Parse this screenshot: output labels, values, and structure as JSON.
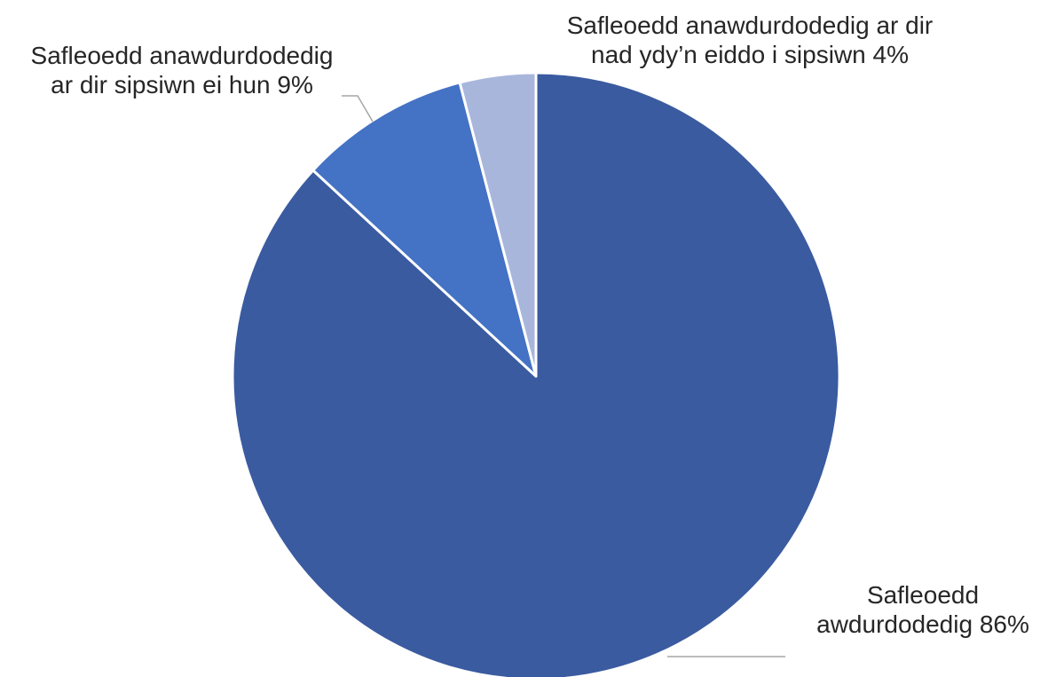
{
  "chart_data": {
    "type": "pie",
    "title": "",
    "legend": "none",
    "slices": [
      {
        "name": "Safleoedd awdurdodedig",
        "value": 86,
        "label_lines": [
          "Safleoedd",
          "awdurdodedig 86%"
        ],
        "color": "#3a5ba0"
      },
      {
        "name": "Safleoedd anawdurdodedig ar dir sipsiwn ei hun",
        "value": 9,
        "label_lines": [
          "Safleoedd anawdurdodedig",
          "ar dir sipsiwn ei hun 9%"
        ],
        "color": "#4472c4"
      },
      {
        "name": "Safleoedd anawdurdodedig ar dir nad ydy’n eiddo i sipsiwn",
        "value": 4,
        "label_lines": [
          "Safleoedd anawdurdodedig ar dir",
          "nad ydy’n eiddo i sipsiwn 4%"
        ],
        "color": "#a9b6dc"
      }
    ]
  }
}
